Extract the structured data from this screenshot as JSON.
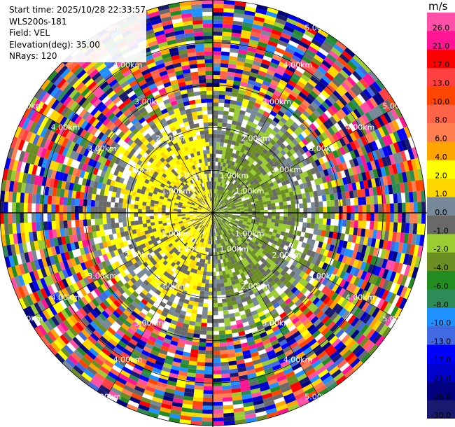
{
  "info": {
    "start_time": "Start time: 2025/10/28 22:33:57",
    "instrument": "WLS200s-181",
    "field": "Field: VEL",
    "elevation": "Elevation(deg): 35.00",
    "nrays": "NRays: 120"
  },
  "colorbar": {
    "unit": "m/s",
    "levels": [
      {
        "label": "26.0",
        "color": "#ff4fa7"
      },
      {
        "label": "21.0",
        "color": "#ff1493"
      },
      {
        "label": "17.0",
        "color": "#ff0000"
      },
      {
        "label": "13.0",
        "color": "#ff4040"
      },
      {
        "label": "10.0",
        "color": "#ff4500"
      },
      {
        "label": "8.0",
        "color": "#ff6347"
      },
      {
        "label": "6.0",
        "color": "#ff7f50"
      },
      {
        "label": "4.0",
        "color": "#ffa500"
      },
      {
        "label": "2.0",
        "color": "#ffff00"
      },
      {
        "label": "1.0",
        "color": "#ffd700"
      },
      {
        "label": "0.0",
        "color": "#778899"
      },
      {
        "label": "-1.0",
        "color": "#696969"
      },
      {
        "label": "-2.0",
        "color": "#9acd32"
      },
      {
        "label": "-4.0",
        "color": "#6b8e23"
      },
      {
        "label": "-6.0",
        "color": "#228b22"
      },
      {
        "label": "-8.0",
        "color": "#2e8b57"
      },
      {
        "label": "-10.0",
        "color": "#1e90ff"
      },
      {
        "label": "-13.0",
        "color": "#4169e1"
      },
      {
        "label": "-17.0",
        "color": "#0000ff"
      },
      {
        "label": "-21.0",
        "color": "#0000cd"
      },
      {
        "label": "-26.0",
        "color": "#000080"
      },
      {
        "label": "-30.0",
        "color": "#191970"
      }
    ]
  },
  "chart_data": {
    "type": "ppi",
    "field": "VEL",
    "nrays": 120,
    "elevation_deg": 35.0,
    "range_rings_km": [
      1.0,
      2.0,
      3.0,
      4.0,
      5.0
    ],
    "ring_labels": [
      "1.00km",
      "2.00km",
      "3.00km",
      "4.00km",
      "5.00km"
    ],
    "max_range_km": 5.0,
    "spokes_deg_step": 30,
    "palette_min": -30.0,
    "palette_max": 30.0,
    "description": "Near range: positive (yellow/gold) velocities west of the site, negative (greens) east; gray fill of low values; far range dominated by noise across the whole palette."
  }
}
